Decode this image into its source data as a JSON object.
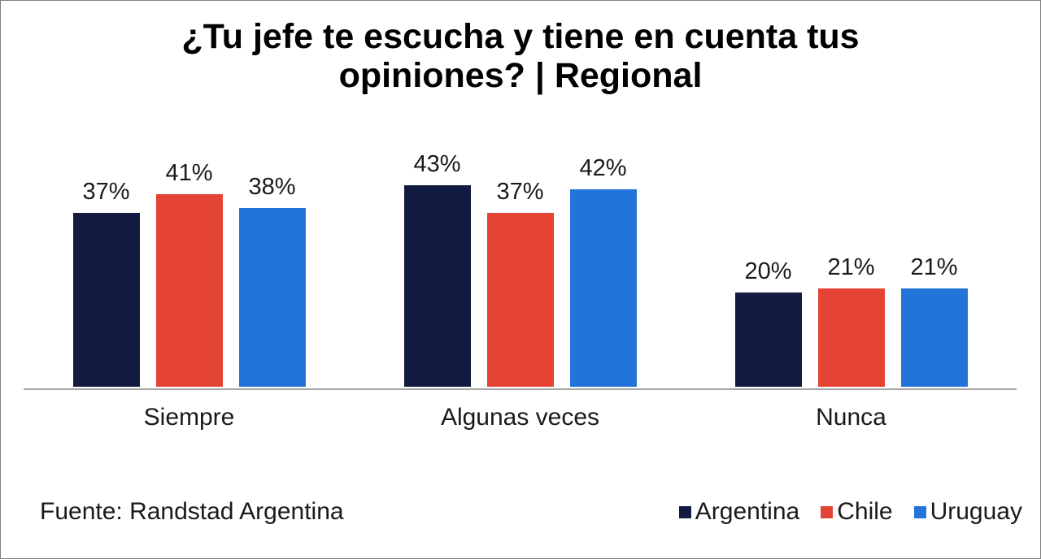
{
  "title": "¿Tu jefe te escucha y tiene en cuenta tus opiniones? | Regional",
  "source": "Fuente: Randstad Argentina",
  "colors": {
    "axis_line": "#A6A6A6",
    "canvas_border": "#7F7F7F",
    "label_text": "#1A1A1A",
    "title_text": "#000000"
  },
  "chart_data": {
    "type": "bar",
    "title": "¿Tu jefe te escucha y tiene en cuenta tus opiniones? | Regional",
    "categories": [
      "Siempre",
      "Algunas veces",
      "Nunca"
    ],
    "series": [
      {
        "name": "Argentina",
        "color": "#121C42",
        "values": [
          37,
          43,
          20
        ]
      },
      {
        "name": "Chile",
        "color": "#E54434",
        "values": [
          41,
          37,
          21
        ]
      },
      {
        "name": "Uruguay",
        "color": "#2374D9",
        "values": [
          38,
          42,
          21
        ]
      }
    ],
    "data_labels": true,
    "label_format": "{v}%",
    "ylim": [
      0,
      45
    ],
    "grid": false,
    "y_axis_visible": false,
    "x_axis_line": true,
    "legend_position": "bottom-right",
    "source_note": "Fuente: Randstad Argentina"
  }
}
